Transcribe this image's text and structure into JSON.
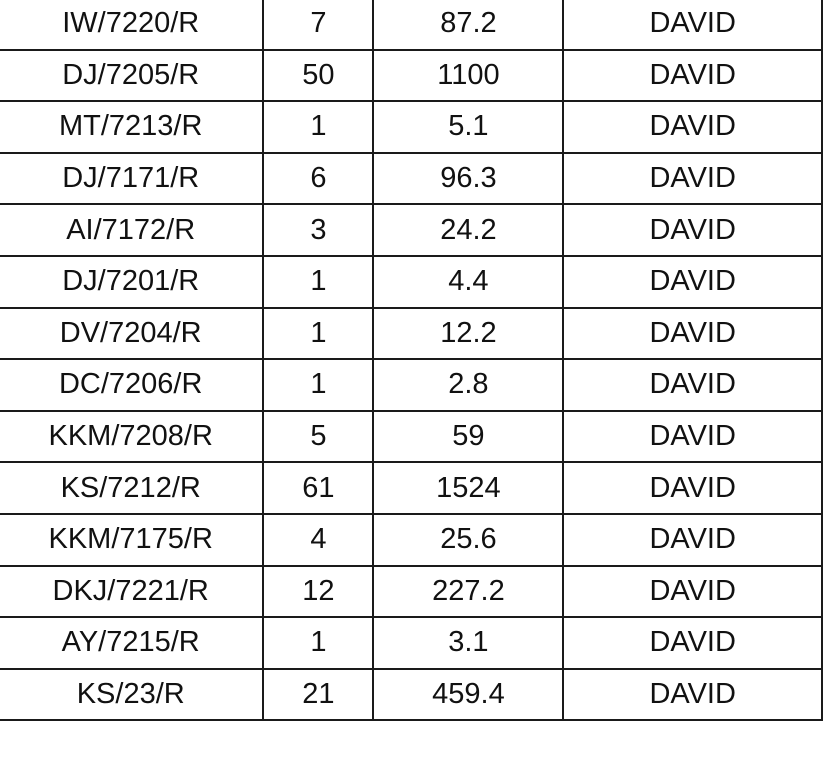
{
  "table": {
    "rows": [
      {
        "code": "IW/7220/R",
        "qty": "7",
        "weight": "87.2",
        "name": "DAVID"
      },
      {
        "code": "DJ/7205/R",
        "qty": "50",
        "weight": "1100",
        "name": "DAVID"
      },
      {
        "code": "MT/7213/R",
        "qty": "1",
        "weight": "5.1",
        "name": "DAVID"
      },
      {
        "code": "DJ/7171/R",
        "qty": "6",
        "weight": "96.3",
        "name": "DAVID"
      },
      {
        "code": "AI/7172/R",
        "qty": "3",
        "weight": "24.2",
        "name": "DAVID"
      },
      {
        "code": "DJ/7201/R",
        "qty": "1",
        "weight": "4.4",
        "name": "DAVID"
      },
      {
        "code": "DV/7204/R",
        "qty": "1",
        "weight": "12.2",
        "name": "DAVID"
      },
      {
        "code": "DC/7206/R",
        "qty": "1",
        "weight": "2.8",
        "name": "DAVID"
      },
      {
        "code": "KKM/7208/R",
        "qty": "5",
        "weight": "59",
        "name": "DAVID"
      },
      {
        "code": "KS/7212/R",
        "qty": "61",
        "weight": "1524",
        "name": "DAVID"
      },
      {
        "code": "KKM/7175/R",
        "qty": "4",
        "weight": "25.6",
        "name": "DAVID"
      },
      {
        "code": "DKJ/7221/R",
        "qty": "12",
        "weight": "227.2",
        "name": "DAVID"
      },
      {
        "code": "AY/7215/R",
        "qty": "1",
        "weight": "3.1",
        "name": "DAVID"
      },
      {
        "code": "KS/23/R",
        "qty": "21",
        "weight": "459.4",
        "name": "DAVID"
      }
    ]
  },
  "colors": {
    "qty_text": "#cc1f1f",
    "text": "#111111",
    "grid_line": "#1a1a1a"
  }
}
